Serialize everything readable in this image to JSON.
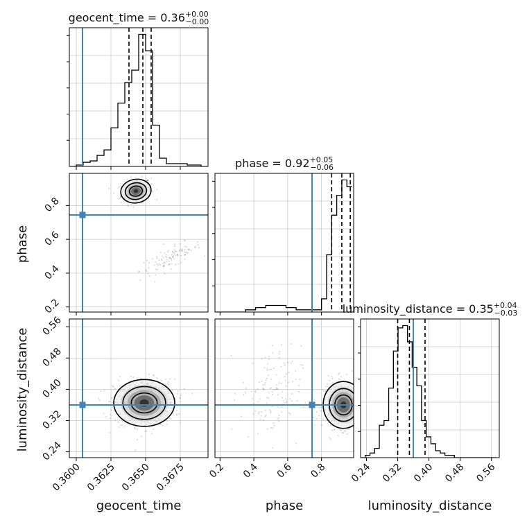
{
  "chart_data": {
    "type": "corner",
    "parameters": [
      "geocent_time",
      "phase",
      "luminosity_distance"
    ],
    "truths": {
      "geocent_time": 0.36045,
      "phase": 0.744,
      "luminosity_distance": 0.36
    },
    "ranges": {
      "geocent_time": [
        0.3595,
        0.3695
      ],
      "phase": [
        0.17,
        0.99
      ],
      "luminosity_distance": [
        0.225,
        0.58
      ]
    },
    "titles": [
      {
        "param": "geocent_time",
        "name": "geocent_time",
        "value": "0.36",
        "plus": "+0.00",
        "minus": "−0.00"
      },
      {
        "param": "phase",
        "name": "phase",
        "value": "0.92",
        "plus": "+0.05",
        "minus": "−0.06"
      },
      {
        "param": "luminosity_distance",
        "name": "luminosity_distance",
        "value": "0.35",
        "plus": "+0.04",
        "minus": "−0.03"
      }
    ],
    "axis_labels": {
      "x": [
        "geocent_time",
        "phase",
        "luminosity_distance"
      ],
      "y": [
        "phase",
        "luminosity_distance"
      ]
    },
    "ticks": {
      "geocent_time": {
        "values": [
          0.36,
          0.3625,
          0.365,
          0.3675
        ],
        "labels": [
          "0.3600",
          "0.3625",
          "0.3650",
          "0.3675"
        ]
      },
      "phase": {
        "values": [
          0.2,
          0.4,
          0.6,
          0.8
        ],
        "labels": [
          "0.2",
          "0.4",
          "0.6",
          "0.8"
        ]
      },
      "luminosity_distance": {
        "values": [
          0.24,
          0.32,
          0.4,
          0.48,
          0.56
        ],
        "labels": [
          "0.24",
          "0.32",
          "0.40",
          "0.48",
          "0.56"
        ]
      }
    },
    "quantiles": {
      "geocent_time": [
        0.3638,
        0.3648,
        0.3654
      ],
      "phase": [
        0.86,
        0.92,
        0.97
      ],
      "luminosity_distance": [
        0.32,
        0.35,
        0.39
      ]
    },
    "histograms": {
      "geocent_time": {
        "edges": [
          0.3595,
          0.36,
          0.3605,
          0.361,
          0.3615,
          0.362,
          0.3625,
          0.363,
          0.3635,
          0.364,
          0.3645,
          0.365,
          0.3655,
          0.366,
          0.3665,
          0.367,
          0.3675,
          0.368,
          0.3685,
          0.369,
          0.3695
        ],
        "counts": [
          0,
          1,
          3,
          4,
          8,
          12,
          28,
          46,
          61,
          70,
          96,
          84,
          30,
          6,
          2,
          2,
          2,
          1,
          1,
          0
        ]
      },
      "phase": {
        "edges": [
          0.17,
          0.2,
          0.23,
          0.26,
          0.29,
          0.32,
          0.35,
          0.38,
          0.41,
          0.44,
          0.47,
          0.5,
          0.53,
          0.56,
          0.59,
          0.62,
          0.65,
          0.68,
          0.71,
          0.74,
          0.77,
          0.8,
          0.83,
          0.86,
          0.89,
          0.92,
          0.95,
          0.98
        ],
        "counts": [
          0,
          0,
          0,
          0,
          0,
          0,
          1,
          1,
          2,
          2,
          3,
          3,
          3,
          3,
          2,
          2,
          1,
          1,
          1,
          1,
          1,
          6,
          26,
          44,
          53,
          60,
          57
        ]
      },
      "luminosity_distance": {
        "edges": [
          0.225,
          0.237,
          0.249,
          0.261,
          0.273,
          0.285,
          0.297,
          0.309,
          0.321,
          0.333,
          0.345,
          0.357,
          0.369,
          0.381,
          0.393,
          0.405,
          0.417,
          0.429,
          0.441,
          0.453,
          0.465,
          0.477,
          0.489,
          0.501,
          0.513,
          0.525,
          0.537,
          0.549,
          0.561,
          0.573
        ],
        "counts": [
          0,
          1,
          2,
          4,
          14,
          16,
          30,
          46,
          56,
          57,
          50,
          39,
          31,
          16,
          9,
          6,
          3,
          2,
          1,
          1,
          0,
          0,
          0,
          0,
          0,
          0,
          0,
          0,
          0
        ]
      }
    },
    "scatter_regions": [
      {
        "panel": "geocent_time-phase",
        "center": [
          0.3643,
          0.885
        ],
        "spread": [
          0.00055,
          0.035
        ],
        "count": 260,
        "slope": 13
      },
      {
        "panel": "geocent_time-phase",
        "center": [
          0.3668,
          0.49
        ],
        "spread": [
          0.0011,
          0.03
        ],
        "count": 110,
        "slope": 35
      },
      {
        "panel": "geocent_time-luminosity_distance",
        "center": [
          0.3649,
          0.365
        ],
        "spread": [
          0.0011,
          0.03
        ],
        "count": 650,
        "slope": 0
      },
      {
        "panel": "phase-luminosity_distance",
        "center": [
          0.93,
          0.36
        ],
        "spread": [
          0.06,
          0.03
        ],
        "count": 420,
        "slope": 0
      },
      {
        "panel": "phase-luminosity_distance",
        "center": [
          0.5,
          0.39
        ],
        "spread": [
          0.09,
          0.06
        ],
        "count": 140,
        "slope": 0
      }
    ],
    "grid": true
  }
}
